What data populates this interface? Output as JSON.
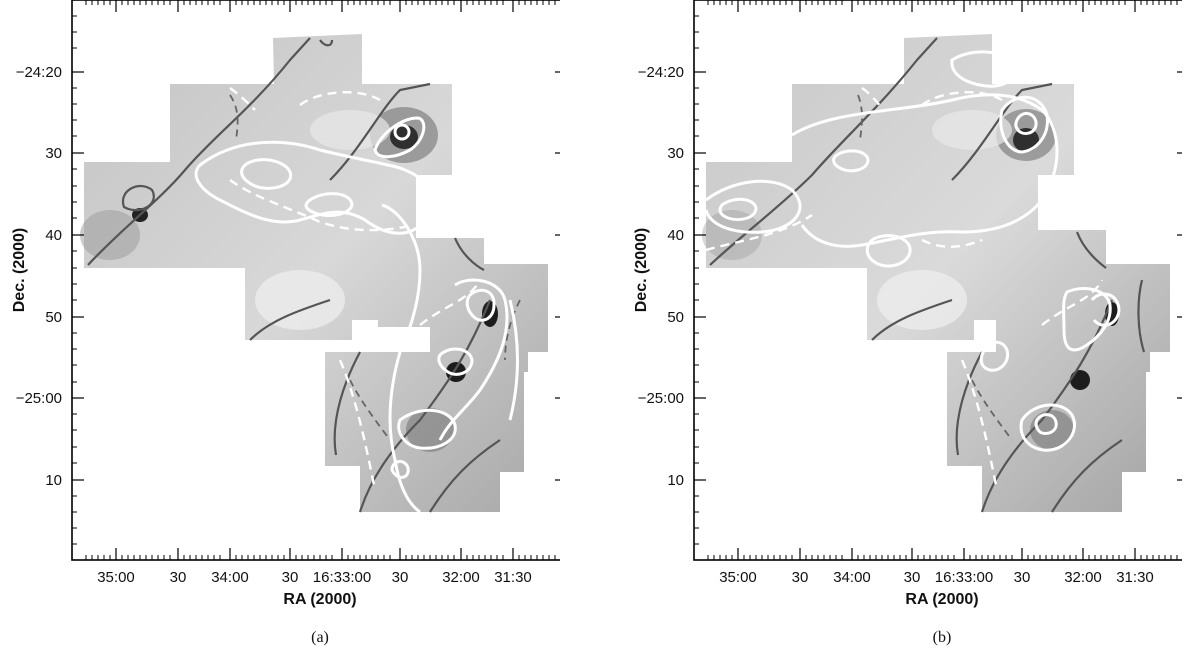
{
  "figure": {
    "panels": [
      {
        "caption": "(a)",
        "xlabel": "RA (2000)",
        "ylabel": "Dec. (2000)",
        "ra_ticks": [
          "35:00",
          "30",
          "34:00",
          "30",
          "16:33:00",
          "30",
          "32:00",
          "31:30"
        ],
        "dec_ticks": [
          "−24:20",
          "30",
          "40",
          "50",
          "−25:00",
          "10"
        ]
      },
      {
        "caption": "(b)",
        "xlabel": "RA (2000)",
        "ylabel": "Dec. (2000)",
        "ra_ticks": [
          "35:00",
          "30",
          "34:00",
          "30",
          "16:33:00",
          "30",
          "32:00",
          "31:30"
        ],
        "dec_ticks": [
          "−24:20",
          "30",
          "40",
          "50",
          "−25:00",
          "10"
        ]
      }
    ]
  },
  "colors": {
    "frame": "#000000",
    "map_light": "#dcdcdc",
    "map_mid": "#b8b8b8",
    "map_dark": "#3a3a3a",
    "contour_gray": "#555555",
    "contour_white": "#ffffff"
  }
}
